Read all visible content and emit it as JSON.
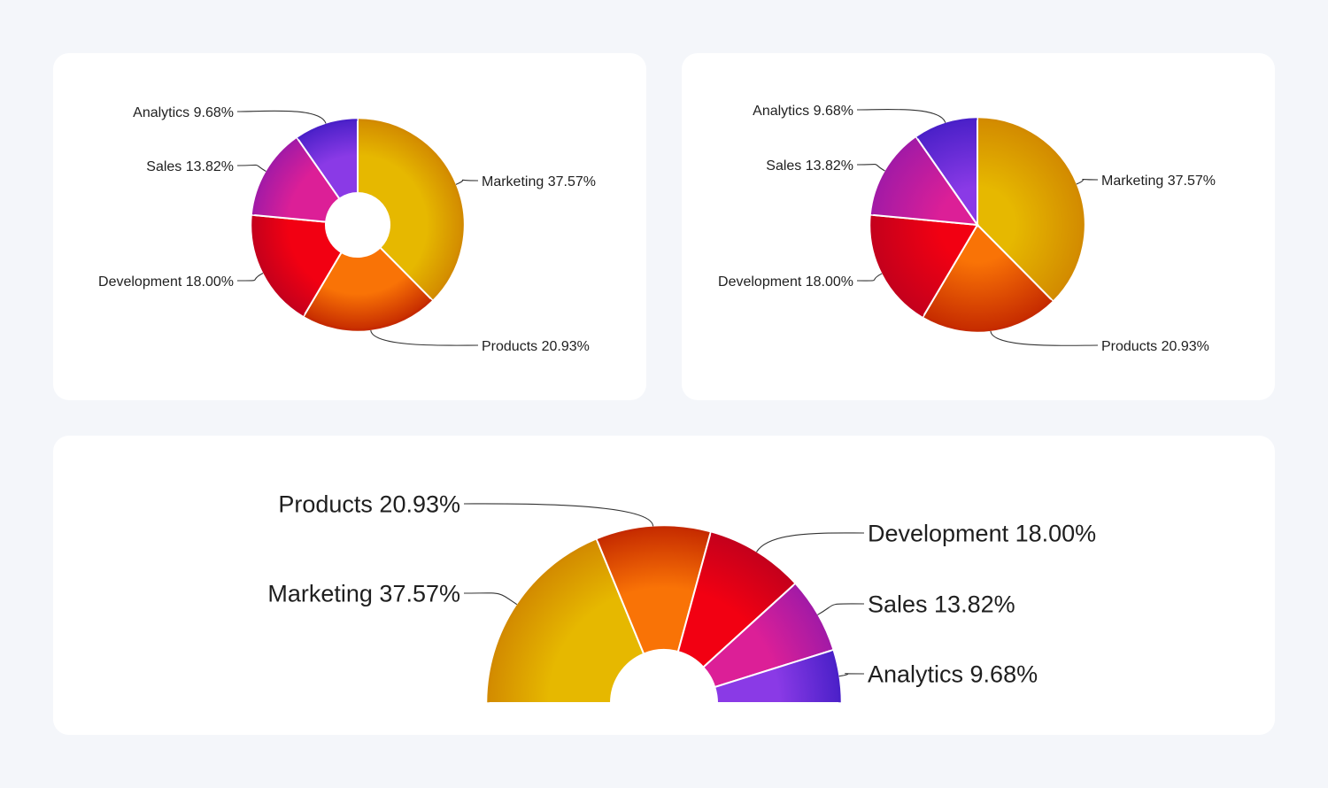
{
  "chart_data": [
    {
      "type": "pie",
      "variant": "donut",
      "slices": [
        {
          "label": "Marketing",
          "value": 37.57,
          "percent_text": "37.57%",
          "color": "#e6b800",
          "dark": "#d28a00"
        },
        {
          "label": "Products",
          "value": 20.93,
          "percent_text": "20.93%",
          "color": "#f97306",
          "dark": "#c52a00"
        },
        {
          "label": "Development",
          "value": 18.0,
          "percent_text": "18.00%",
          "color": "#f20012",
          "dark": "#c4001c"
        },
        {
          "label": "Sales",
          "value": 13.82,
          "percent_text": "13.82%",
          "color": "#dc1f97",
          "dark": "#a21aa6"
        },
        {
          "label": "Analytics",
          "value": 9.68,
          "percent_text": "9.68%",
          "color": "#8a3ae6",
          "dark": "#4a20c8"
        }
      ]
    },
    {
      "type": "pie",
      "variant": "pie",
      "slices": [
        {
          "label": "Marketing",
          "value": 37.57,
          "percent_text": "37.57%",
          "color": "#e6b800",
          "dark": "#d28a00"
        },
        {
          "label": "Products",
          "value": 20.93,
          "percent_text": "20.93%",
          "color": "#f97306",
          "dark": "#c52a00"
        },
        {
          "label": "Development",
          "value": 18.0,
          "percent_text": "18.00%",
          "color": "#f20012",
          "dark": "#c4001c"
        },
        {
          "label": "Sales",
          "value": 13.82,
          "percent_text": "13.82%",
          "color": "#dc1f97",
          "dark": "#a21aa6"
        },
        {
          "label": "Analytics",
          "value": 9.68,
          "percent_text": "9.68%",
          "color": "#8a3ae6",
          "dark": "#4a20c8"
        }
      ]
    },
    {
      "type": "pie",
      "variant": "semi-donut",
      "slices": [
        {
          "label": "Marketing",
          "value": 37.57,
          "percent_text": "37.57%",
          "color": "#e6b800",
          "dark": "#d28a00"
        },
        {
          "label": "Products",
          "value": 20.93,
          "percent_text": "20.93%",
          "color": "#f97306",
          "dark": "#c52a00"
        },
        {
          "label": "Development",
          "value": 18.0,
          "percent_text": "18.00%",
          "color": "#f20012",
          "dark": "#c4001c"
        },
        {
          "label": "Sales",
          "value": 13.82,
          "percent_text": "13.82%",
          "color": "#dc1f97",
          "dark": "#a21aa6"
        },
        {
          "label": "Analytics",
          "value": 9.68,
          "percent_text": "9.68%",
          "color": "#8a3ae6",
          "dark": "#4a20c8"
        }
      ]
    }
  ]
}
